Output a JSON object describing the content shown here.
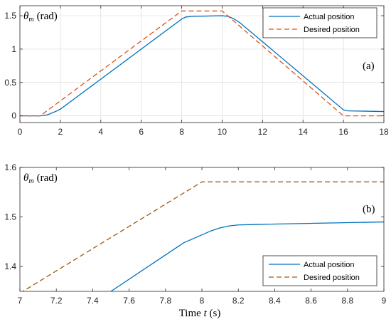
{
  "chart_data": [
    {
      "type": "line",
      "panel_label": "(a)",
      "ylabel_text": "θ",
      "ylabel_sub": "m",
      "ylabel_unit": "(rad)",
      "xlim": [
        0,
        18
      ],
      "ylim": [
        -0.1,
        1.65
      ],
      "xticks": [
        0,
        2,
        4,
        6,
        8,
        10,
        12,
        14,
        16,
        18
      ],
      "yticks": [
        0,
        0.5,
        1,
        1.5
      ],
      "ytick_labels": [
        "0",
        "0.5",
        "1",
        "1.5"
      ],
      "grid": true,
      "legend_position": "top-right",
      "series": [
        {
          "name": "Actual position",
          "color": "#0072BD",
          "dash": "solid",
          "x": [
            0,
            1.0,
            1.2,
            1.4,
            1.6,
            1.8,
            2.0,
            8.0,
            8.2,
            8.5,
            10.0,
            10.3,
            10.6,
            10.9,
            16.0,
            16.2,
            18.0
          ],
          "y": [
            0,
            0,
            0.005,
            0.02,
            0.045,
            0.07,
            0.1,
            1.45,
            1.48,
            1.49,
            1.5,
            1.49,
            1.45,
            1.39,
            0.09,
            0.075,
            0.065
          ]
        },
        {
          "name": "Desired position",
          "color": "#D95319",
          "dash": "dashed",
          "x": [
            0,
            1.0,
            8.0,
            10.0,
            16.0,
            18.0
          ],
          "y": [
            0,
            0,
            1.5708,
            1.5708,
            0,
            0
          ]
        }
      ]
    },
    {
      "type": "line",
      "panel_label": "(b)",
      "ylabel_text": "θ",
      "ylabel_sub": "m",
      "ylabel_unit": "(rad)",
      "xlabel_text": "Time",
      "xlabel_var": "t",
      "xlabel_unit": "(s)",
      "xlim": [
        7,
        9
      ],
      "ylim": [
        1.35,
        1.6
      ],
      "xticks": [
        7,
        7.2,
        7.4,
        7.6,
        7.8,
        8,
        8.2,
        8.4,
        8.6,
        8.8,
        9
      ],
      "xtick_labels": [
        "7",
        "7.2",
        "7.4",
        "7.6",
        "7.8",
        "8",
        "8.2",
        "8.4",
        "8.6",
        "8.8",
        "9"
      ],
      "yticks": [
        1.4,
        1.5,
        1.6
      ],
      "ytick_labels": [
        "1.4",
        "1.5",
        "1.6"
      ],
      "grid": false,
      "legend_position": "bottom-right",
      "series": [
        {
          "name": "Actual position",
          "color": "#0072BD",
          "dash": "solid",
          "x": [
            7.5,
            7.9,
            8.0,
            8.05,
            8.1,
            8.15,
            8.2,
            8.3,
            9.0
          ],
          "y": [
            1.35,
            1.448,
            1.464,
            1.472,
            1.478,
            1.482,
            1.484,
            1.485,
            1.49
          ]
        },
        {
          "name": "Desired position",
          "color": "#A2590C",
          "dash": "dashed",
          "x": [
            7.0,
            8.0,
            9.0
          ],
          "y": [
            1.3464,
            1.5708,
            1.5708
          ]
        }
      ]
    }
  ]
}
